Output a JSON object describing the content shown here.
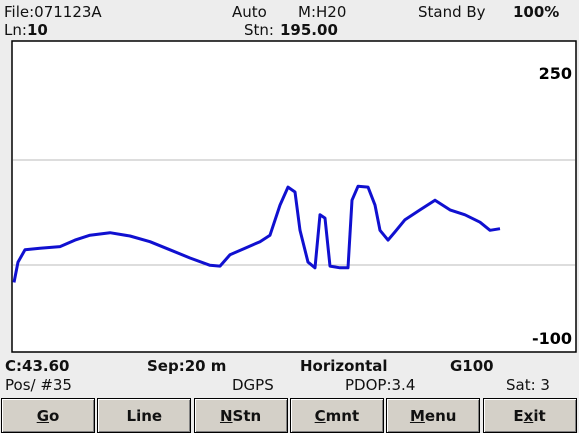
{
  "header": {
    "file": "File:071123A",
    "mode": "Auto",
    "meter": "M:H20",
    "status": "Stand By",
    "battery": "100%",
    "line_label": "Ln:",
    "line": "10",
    "stn_label": "Stn:",
    "stn": "195.00"
  },
  "chart_data": {
    "type": "line",
    "ylim": [
      -100,
      250
    ],
    "yticks": [
      -100,
      250
    ],
    "xlim": [
      12,
      576
    ],
    "color": "#1010d0",
    "x": [
      14,
      18,
      25,
      40,
      60,
      75,
      90,
      110,
      130,
      150,
      170,
      190,
      210,
      220,
      230,
      245,
      260,
      270,
      280,
      288,
      295,
      300,
      308,
      315,
      320,
      325,
      330,
      340,
      348,
      352,
      358,
      368,
      375,
      380,
      388,
      395,
      405,
      420,
      435,
      450,
      465,
      480,
      490,
      500
    ],
    "values": [
      -17,
      8,
      23,
      25,
      27,
      35,
      41,
      44,
      40,
      33,
      23,
      13,
      4,
      3,
      17,
      25,
      33,
      41,
      78,
      100,
      94,
      47,
      8,
      1,
      66,
      62,
      3,
      1,
      1,
      84,
      101,
      100,
      78,
      47,
      35,
      45,
      60,
      72,
      84,
      72,
      66,
      57,
      47,
      49
    ]
  },
  "status": {
    "c": "C:43.60",
    "sep": "Sep:20 m",
    "orientation": "Horizontal",
    "gain": "G100",
    "pos": "Pos/ #35",
    "gps": "DGPS",
    "pdop": "PDOP:3.4",
    "sat": "Sat: 3"
  },
  "buttons": [
    {
      "label": "Go",
      "underline": 0
    },
    {
      "label": "Line"
    },
    {
      "label": "NStn",
      "underline": 0
    },
    {
      "label": "Cmnt",
      "underline": 0
    },
    {
      "label": "Menu",
      "underline": 0
    },
    {
      "label": "Exit",
      "underline": 1
    }
  ]
}
